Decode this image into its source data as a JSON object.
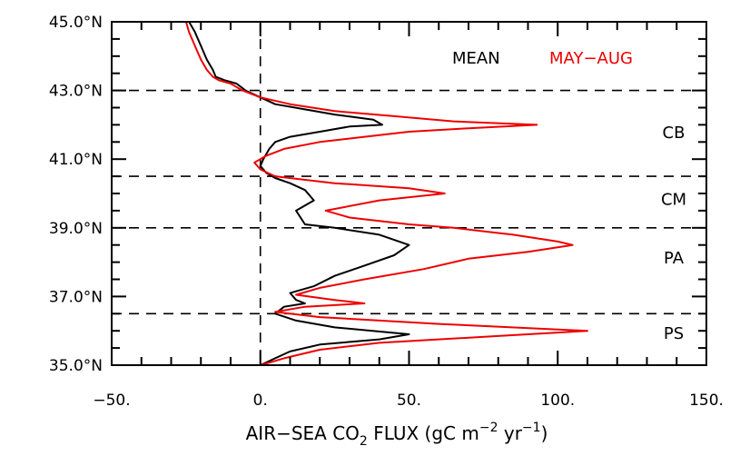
{
  "chart_data": {
    "type": "line",
    "orientation": "vertical-profile",
    "xlabel_parts": [
      "AIR−SEA CO",
      "2",
      " FLUX (gC m",
      "−2",
      " yr",
      "−1",
      ")"
    ],
    "xlim": [
      -50,
      150
    ],
    "ylim": [
      35.0,
      45.0
    ],
    "x_ticks": [
      -50,
      0,
      50,
      100,
      150
    ],
    "x_tick_labels": [
      "−50.",
      "0.",
      "50.",
      "100.",
      "150."
    ],
    "y_ticks": [
      35,
      37,
      39,
      41,
      43,
      45
    ],
    "y_tick_labels": [
      "35.0°N",
      "37.0°N",
      "39.0°N",
      "41.0°N",
      "43.0°N",
      "45.0°N"
    ],
    "zero_line_x": 0,
    "region_boundaries_lat": [
      43.0,
      40.5,
      39.0,
      36.5
    ],
    "regions": [
      {
        "label": "CB",
        "lat": 41.8
      },
      {
        "label": "CM",
        "lat": 39.85
      },
      {
        "label": "PA",
        "lat": 38.15
      },
      {
        "label": "PS",
        "lat": 35.95
      }
    ],
    "legend": {
      "placement": "top-right",
      "entries": [
        "MEAN",
        "MAY−AUG"
      ]
    },
    "series": [
      {
        "name": "MEAN",
        "color": "#000000",
        "points": [
          [
            -24,
            45.0
          ],
          [
            -22,
            44.7
          ],
          [
            -20,
            44.3
          ],
          [
            -18,
            43.9
          ],
          [
            -16,
            43.6
          ],
          [
            -15,
            43.4
          ],
          [
            -12,
            43.3
          ],
          [
            -8,
            43.2
          ],
          [
            -5,
            43.0
          ],
          [
            0,
            42.8
          ],
          [
            5,
            42.6
          ],
          [
            15,
            42.45
          ],
          [
            25,
            42.3
          ],
          [
            38,
            42.15
          ],
          [
            41,
            42.0
          ],
          [
            30,
            41.95
          ],
          [
            20,
            41.8
          ],
          [
            10,
            41.65
          ],
          [
            5,
            41.5
          ],
          [
            3,
            41.3
          ],
          [
            1,
            41.0
          ],
          [
            0,
            40.8
          ],
          [
            2,
            40.6
          ],
          [
            5,
            40.45
          ],
          [
            10,
            40.3
          ],
          [
            15,
            40.1
          ],
          [
            18,
            39.8
          ],
          [
            12,
            39.5
          ],
          [
            15,
            39.1
          ],
          [
            25,
            39.0
          ],
          [
            40,
            38.8
          ],
          [
            50,
            38.5
          ],
          [
            45,
            38.2
          ],
          [
            35,
            37.9
          ],
          [
            25,
            37.6
          ],
          [
            18,
            37.3
          ],
          [
            10,
            37.1
          ],
          [
            12,
            36.9
          ],
          [
            15,
            36.8
          ],
          [
            8,
            36.7
          ],
          [
            5,
            36.5
          ],
          [
            12,
            36.3
          ],
          [
            25,
            36.1
          ],
          [
            50,
            35.9
          ],
          [
            40,
            35.75
          ],
          [
            20,
            35.6
          ],
          [
            10,
            35.4
          ],
          [
            5,
            35.2
          ],
          [
            0,
            35.0
          ]
        ]
      },
      {
        "name": "MAY−AUG",
        "color": "#ee0000",
        "points": [
          [
            -25,
            45.0
          ],
          [
            -24,
            44.7
          ],
          [
            -22,
            44.3
          ],
          [
            -20,
            43.9
          ],
          [
            -18,
            43.6
          ],
          [
            -16,
            43.4
          ],
          [
            -14,
            43.3
          ],
          [
            -10,
            43.2
          ],
          [
            -6,
            43.0
          ],
          [
            0,
            42.8
          ],
          [
            10,
            42.6
          ],
          [
            25,
            42.4
          ],
          [
            45,
            42.25
          ],
          [
            65,
            42.1
          ],
          [
            93,
            42.0
          ],
          [
            70,
            41.9
          ],
          [
            50,
            41.8
          ],
          [
            35,
            41.65
          ],
          [
            20,
            41.5
          ],
          [
            8,
            41.3
          ],
          [
            2,
            41.1
          ],
          [
            -2,
            40.9
          ],
          [
            0,
            40.7
          ],
          [
            5,
            40.5
          ],
          [
            25,
            40.3
          ],
          [
            50,
            40.15
          ],
          [
            62,
            40.0
          ],
          [
            40,
            39.8
          ],
          [
            22,
            39.5
          ],
          [
            30,
            39.3
          ],
          [
            50,
            39.1
          ],
          [
            65,
            39.0
          ],
          [
            85,
            38.8
          ],
          [
            100,
            38.6
          ],
          [
            105,
            38.5
          ],
          [
            90,
            38.3
          ],
          [
            70,
            38.1
          ],
          [
            55,
            37.8
          ],
          [
            35,
            37.5
          ],
          [
            20,
            37.25
          ],
          [
            12,
            37.05
          ],
          [
            25,
            36.9
          ],
          [
            35,
            36.8
          ],
          [
            15,
            36.7
          ],
          [
            5,
            36.55
          ],
          [
            20,
            36.4
          ],
          [
            60,
            36.2
          ],
          [
            110,
            36.0
          ],
          [
            80,
            35.85
          ],
          [
            40,
            35.65
          ],
          [
            20,
            35.45
          ],
          [
            8,
            35.2
          ],
          [
            0,
            35.0
          ]
        ]
      }
    ]
  }
}
